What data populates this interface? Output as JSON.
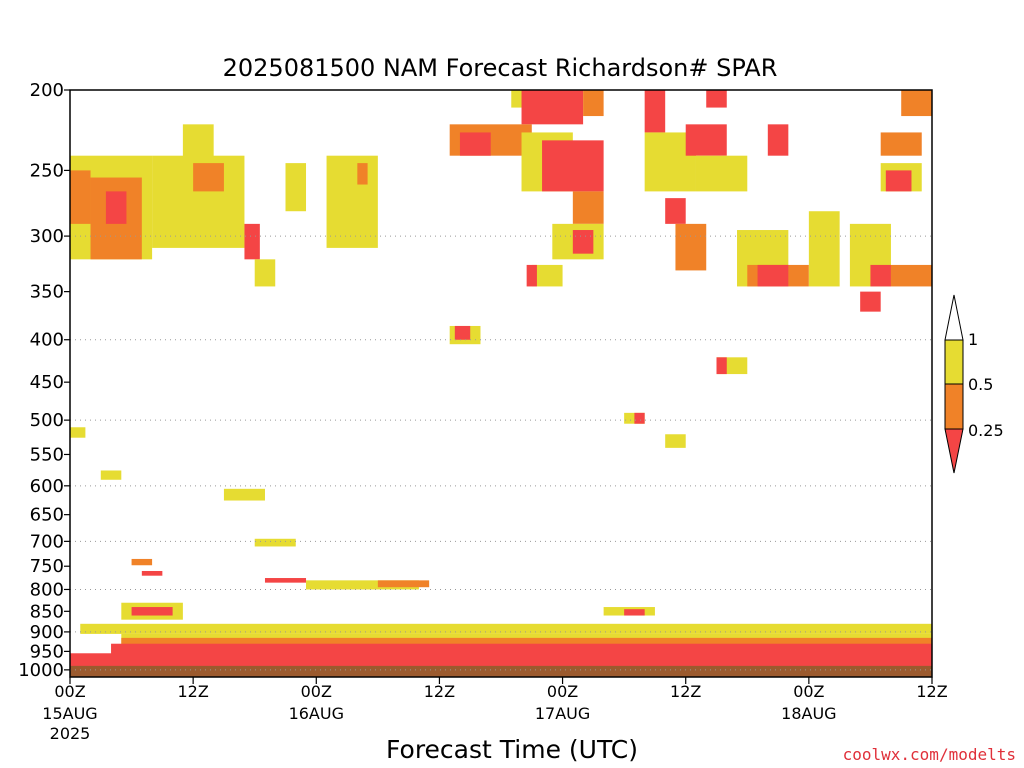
{
  "chart_data": {
    "type": "heatmap",
    "title": "2025081500 NAM Forecast Richardson# SPAR",
    "xlabel": "Forecast Time (UTC)",
    "ylabel": "",
    "y_scale": "log-pressure (inverted)",
    "ylim": [
      1020,
      200
    ],
    "y_ticks": [
      200,
      250,
      300,
      350,
      400,
      450,
      500,
      550,
      600,
      650,
      700,
      750,
      800,
      850,
      900,
      950,
      1000
    ],
    "y_gridlines": [
      300,
      400,
      500,
      600,
      700,
      800,
      900,
      1000
    ],
    "x_unit": "forecast hours from 2025-08-15 00Z",
    "xlim": [
      0,
      84
    ],
    "x_ticks": [
      {
        "hour": 0,
        "label": "00Z",
        "sub": "15AUG",
        "year": "2025"
      },
      {
        "hour": 12,
        "label": "12Z",
        "sub": "",
        "year": ""
      },
      {
        "hour": 24,
        "label": "00Z",
        "sub": "16AUG",
        "year": ""
      },
      {
        "hour": 36,
        "label": "12Z",
        "sub": "",
        "year": ""
      },
      {
        "hour": 48,
        "label": "00Z",
        "sub": "17AUG",
        "year": ""
      },
      {
        "hour": 60,
        "label": "12Z",
        "sub": "",
        "year": ""
      },
      {
        "hour": 72,
        "label": "00Z",
        "sub": "18AUG",
        "year": ""
      },
      {
        "hour": 84,
        "label": "12Z",
        "sub": "",
        "year": ""
      }
    ],
    "colorbar": {
      "levels": [
        "0.25",
        "0.5",
        "1"
      ],
      "colors": {
        "lt_0.25": "#f44545",
        "0.25_0.5": "#f08228",
        "0.5_1": "#e6dc32"
      }
    },
    "surface_color": "#9b5a2e",
    "surface_pressure": 1000,
    "regions": [
      {
        "x0": 0,
        "x1": 8,
        "p0": 240,
        "p1": 320,
        "c": "y"
      },
      {
        "x0": 0,
        "x1": 2,
        "p0": 250,
        "p1": 290,
        "c": "o"
      },
      {
        "x0": 2,
        "x1": 7,
        "p0": 255,
        "p1": 320,
        "c": "o"
      },
      {
        "x0": 3.5,
        "x1": 5.5,
        "p0": 265,
        "p1": 290,
        "c": "r"
      },
      {
        "x0": 8,
        "x1": 17,
        "p0": 240,
        "p1": 310,
        "c": "y"
      },
      {
        "x0": 11,
        "x1": 14,
        "p0": 220,
        "p1": 245,
        "c": "y"
      },
      {
        "x0": 12,
        "x1": 15,
        "p0": 245,
        "p1": 265,
        "c": "o"
      },
      {
        "x0": 17,
        "x1": 18.5,
        "p0": 290,
        "p1": 320,
        "c": "r"
      },
      {
        "x0": 18,
        "x1": 20,
        "p0": 320,
        "p1": 345,
        "c": "y"
      },
      {
        "x0": 21,
        "x1": 23,
        "p0": 245,
        "p1": 280,
        "c": "y"
      },
      {
        "x0": 25,
        "x1": 30,
        "p0": 240,
        "p1": 310,
        "c": "y"
      },
      {
        "x0": 28,
        "x1": 29,
        "p0": 245,
        "p1": 260,
        "c": "o"
      },
      {
        "x0": 43,
        "x1": 46,
        "p0": 200,
        "p1": 210,
        "c": "y"
      },
      {
        "x0": 44,
        "x1": 50,
        "p0": 200,
        "p1": 220,
        "c": "r"
      },
      {
        "x0": 50,
        "x1": 52,
        "p0": 200,
        "p1": 215,
        "c": "o"
      },
      {
        "x0": 37,
        "x1": 45,
        "p0": 220,
        "p1": 240,
        "c": "o"
      },
      {
        "x0": 38,
        "x1": 41,
        "p0": 225,
        "p1": 240,
        "c": "r"
      },
      {
        "x0": 44,
        "x1": 49,
        "p0": 225,
        "p1": 265,
        "c": "y"
      },
      {
        "x0": 46,
        "x1": 52,
        "p0": 230,
        "p1": 265,
        "c": "r"
      },
      {
        "x0": 49,
        "x1": 52,
        "p0": 265,
        "p1": 290,
        "c": "o"
      },
      {
        "x0": 47,
        "x1": 52,
        "p0": 290,
        "p1": 320,
        "c": "y"
      },
      {
        "x0": 49,
        "x1": 51,
        "p0": 295,
        "p1": 315,
        "c": "r"
      },
      {
        "x0": 45,
        "x1": 48,
        "p0": 325,
        "p1": 345,
        "c": "y"
      },
      {
        "x0": 44.5,
        "x1": 45.5,
        "p0": 325,
        "p1": 345,
        "c": "r"
      },
      {
        "x0": 56,
        "x1": 58,
        "p0": 200,
        "p1": 225,
        "c": "r"
      },
      {
        "x0": 56,
        "x1": 61,
        "p0": 225,
        "p1": 265,
        "c": "y"
      },
      {
        "x0": 58,
        "x1": 60,
        "p0": 270,
        "p1": 290,
        "c": "r"
      },
      {
        "x0": 59,
        "x1": 62,
        "p0": 290,
        "p1": 330,
        "c": "o"
      },
      {
        "x0": 60,
        "x1": 64,
        "p0": 220,
        "p1": 240,
        "c": "r"
      },
      {
        "x0": 61,
        "x1": 66,
        "p0": 240,
        "p1": 265,
        "c": "y"
      },
      {
        "x0": 62,
        "x1": 64,
        "p0": 200,
        "p1": 210,
        "c": "r"
      },
      {
        "x0": 65,
        "x1": 70,
        "p0": 295,
        "p1": 345,
        "c": "y"
      },
      {
        "x0": 66,
        "x1": 72,
        "p0": 325,
        "p1": 345,
        "c": "o"
      },
      {
        "x0": 67,
        "x1": 70,
        "p0": 325,
        "p1": 345,
        "c": "r"
      },
      {
        "x0": 68,
        "x1": 70,
        "p0": 220,
        "p1": 240,
        "c": "r"
      },
      {
        "x0": 72,
        "x1": 75,
        "p0": 280,
        "p1": 345,
        "c": "y"
      },
      {
        "x0": 76,
        "x1": 80,
        "p0": 290,
        "p1": 345,
        "c": "y"
      },
      {
        "x0": 78,
        "x1": 80,
        "p0": 325,
        "p1": 345,
        "c": "r"
      },
      {
        "x0": 80,
        "x1": 84,
        "p0": 325,
        "p1": 345,
        "c": "o"
      },
      {
        "x0": 81,
        "x1": 84,
        "p0": 200,
        "p1": 215,
        "c": "o"
      },
      {
        "x0": 79,
        "x1": 83,
        "p0": 225,
        "p1": 240,
        "c": "o"
      },
      {
        "x0": 79,
        "x1": 83,
        "p0": 245,
        "p1": 265,
        "c": "y"
      },
      {
        "x0": 79.5,
        "x1": 82,
        "p0": 250,
        "p1": 265,
        "c": "r"
      },
      {
        "x0": 77,
        "x1": 79,
        "p0": 350,
        "p1": 370,
        "c": "r"
      },
      {
        "x0": 54,
        "x1": 56,
        "p0": 490,
        "p1": 505,
        "c": "y"
      },
      {
        "x0": 55,
        "x1": 56,
        "p0": 490,
        "p1": 505,
        "c": "r"
      },
      {
        "x0": 37,
        "x1": 40,
        "p0": 385,
        "p1": 405,
        "c": "y"
      },
      {
        "x0": 37.5,
        "x1": 39,
        "p0": 385,
        "p1": 400,
        "c": "r"
      },
      {
        "x0": 63,
        "x1": 66,
        "p0": 420,
        "p1": 440,
        "c": "y"
      },
      {
        "x0": 63,
        "x1": 64,
        "p0": 420,
        "p1": 440,
        "c": "r"
      },
      {
        "x0": 15,
        "x1": 19,
        "p0": 605,
        "p1": 625,
        "c": "y"
      },
      {
        "x0": 3,
        "x1": 5,
        "p0": 575,
        "p1": 590,
        "c": "y"
      },
      {
        "x0": 0,
        "x1": 1.5,
        "p0": 510,
        "p1": 525,
        "c": "y"
      },
      {
        "x0": 58,
        "x1": 60,
        "p0": 520,
        "p1": 540,
        "c": "y"
      },
      {
        "x0": 18,
        "x1": 22,
        "p0": 695,
        "p1": 710,
        "c": "y"
      },
      {
        "x0": 19,
        "x1": 23,
        "p0": 775,
        "p1": 785,
        "c": "r"
      },
      {
        "x0": 23,
        "x1": 34,
        "p0": 780,
        "p1": 800,
        "c": "y"
      },
      {
        "x0": 30,
        "x1": 35,
        "p0": 780,
        "p1": 795,
        "c": "o"
      },
      {
        "x0": 6,
        "x1": 8,
        "p0": 735,
        "p1": 748,
        "c": "o"
      },
      {
        "x0": 7,
        "x1": 9,
        "p0": 760,
        "p1": 770,
        "c": "r"
      },
      {
        "x0": 5,
        "x1": 11,
        "p0": 830,
        "p1": 870,
        "c": "y"
      },
      {
        "x0": 6,
        "x1": 10,
        "p0": 840,
        "p1": 860,
        "c": "r"
      },
      {
        "x0": 52,
        "x1": 57,
        "p0": 840,
        "p1": 860,
        "c": "y"
      },
      {
        "x0": 54,
        "x1": 56,
        "p0": 845,
        "p1": 860,
        "c": "r"
      },
      {
        "x0": 1,
        "x1": 84,
        "p0": 880,
        "p1": 905,
        "c": "y"
      },
      {
        "x0": 5,
        "x1": 84,
        "p0": 905,
        "p1": 935,
        "c": "y"
      },
      {
        "x0": 5,
        "x1": 84,
        "p0": 915,
        "p1": 940,
        "c": "o"
      },
      {
        "x0": 4,
        "x1": 84,
        "p0": 930,
        "p1": 980,
        "c": "r"
      },
      {
        "x0": 0,
        "x1": 84,
        "p0": 955,
        "p1": 1000,
        "c": "r"
      }
    ]
  },
  "colorbar_labels": [
    "1",
    "0.5",
    "0.25"
  ],
  "credit": "coolwx.com/modelts"
}
